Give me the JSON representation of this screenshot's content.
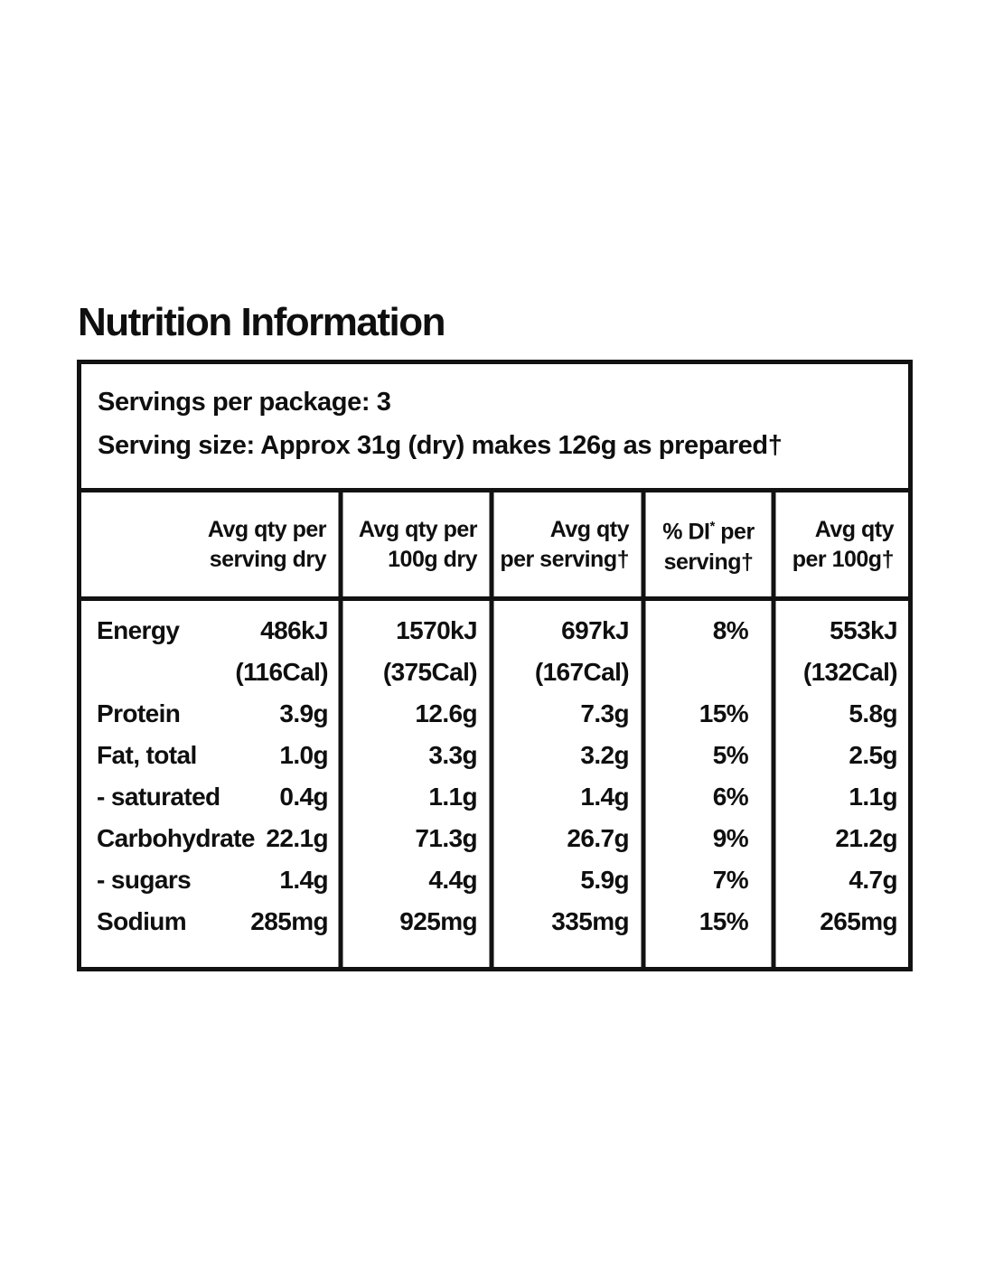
{
  "page_title": "Nutrition Information",
  "colors": {
    "text": "#0f0f0f",
    "border": "#121212",
    "background": "#ffffff"
  },
  "serving_info": {
    "servings_per_package": "Servings per package: 3",
    "serving_size": "Serving size: Approx 31g (dry) makes 126g as prepared†"
  },
  "nutrition": {
    "headers": {
      "col1": {
        "line1": "Avg qty per",
        "line2": "serving dry"
      },
      "col2": {
        "line1": "Avg qty per",
        "line2": "100g dry"
      },
      "col3": {
        "line1": "Avg qty",
        "line2": "per serving†"
      },
      "col4": {
        "line1_text": "% DI",
        "line1_sup": "*",
        "line1_rest": " per",
        "line2": "serving†"
      },
      "col5": {
        "line1": "Avg qty",
        "line2": "per 100g†"
      }
    },
    "rows": [
      {
        "name": "Energy",
        "serving_dry": "486kJ",
        "serving_dry_line2": "(116Cal)",
        "dry_100g": "1570kJ",
        "dry_100g_line2": "(375Cal)",
        "per_serving": "697kJ",
        "per_serving_line2": "(167Cal)",
        "di_per_serving": "8%",
        "per_100g": "553kJ",
        "per_100g_line2": "(132Cal)"
      },
      {
        "name": "Protein",
        "serving_dry": "3.9g",
        "dry_100g": "12.6g",
        "per_serving": "7.3g",
        "di_per_serving": "15%",
        "per_100g": "5.8g"
      },
      {
        "name": "Fat, total",
        "serving_dry": "1.0g",
        "dry_100g": "3.3g",
        "per_serving": "3.2g",
        "di_per_serving": "5%",
        "per_100g": "2.5g"
      },
      {
        "name": "- saturated",
        "serving_dry": "0.4g",
        "dry_100g": "1.1g",
        "per_serving": "1.4g",
        "di_per_serving": "6%",
        "per_100g": "1.1g"
      },
      {
        "name": "Carbohydrate",
        "serving_dry": "22.1g",
        "dry_100g": "71.3g",
        "per_serving": "26.7g",
        "di_per_serving": "9%",
        "per_100g": "21.2g"
      },
      {
        "name": "- sugars",
        "serving_dry": "1.4g",
        "dry_100g": "4.4g",
        "per_serving": "5.9g",
        "di_per_serving": "7%",
        "per_100g": "4.7g"
      },
      {
        "name": "Sodium",
        "serving_dry": "285mg",
        "dry_100g": "925mg",
        "per_serving": "335mg",
        "di_per_serving": "15%",
        "per_100g": "265mg"
      }
    ]
  }
}
